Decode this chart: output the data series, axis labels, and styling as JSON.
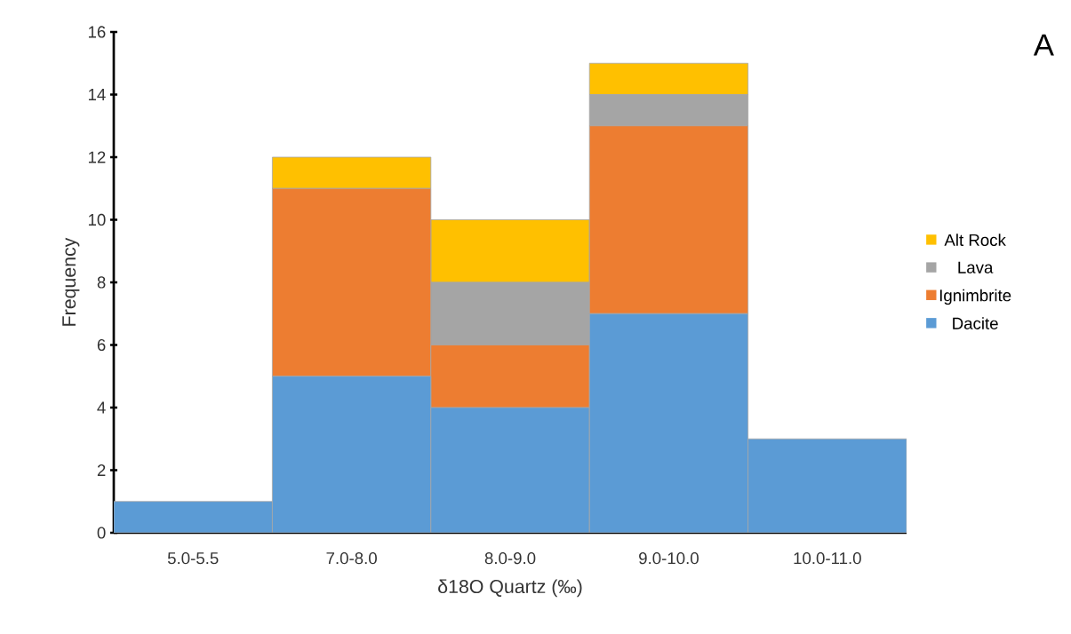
{
  "chart_data": {
    "type": "bar",
    "stacked": true,
    "xlabel": "δ18O Quartz (‰)",
    "ylabel": "Frequency",
    "categories": [
      "5.0-5.5",
      "7.0-8.0",
      "8.0-9.0",
      "9.0-10.0",
      "10.0-11.0"
    ],
    "series": [
      {
        "name": "Dacite",
        "color": "#5b9bd5",
        "values": [
          1,
          5,
          4,
          7,
          3
        ]
      },
      {
        "name": "Ignimbrite",
        "color": "#ed7d31",
        "values": [
          0,
          6,
          2,
          6,
          0
        ]
      },
      {
        "name": "Lava",
        "color": "#a5a5a5",
        "values": [
          0,
          0,
          2,
          1,
          0
        ]
      },
      {
        "name": "Alt Rock",
        "color": "#ffc000",
        "values": [
          0,
          1,
          2,
          1,
          0
        ]
      }
    ],
    "ylim": [
      0,
      16
    ],
    "yticks": [
      0,
      2,
      4,
      6,
      8,
      10,
      12,
      14,
      16
    ],
    "grid": false,
    "legend": "right",
    "annotations": [
      "A"
    ]
  }
}
